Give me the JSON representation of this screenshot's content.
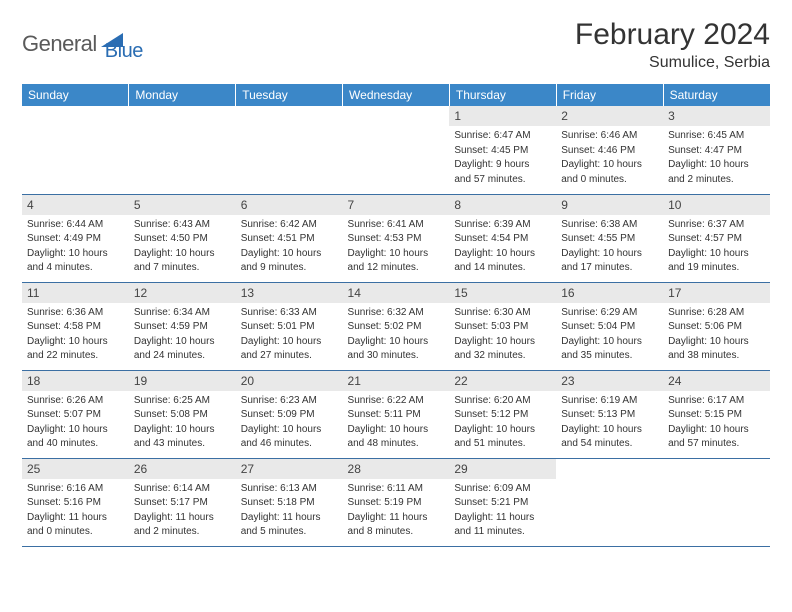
{
  "brand": {
    "part1": "General",
    "part2": "Blue"
  },
  "title": "February 2024",
  "location": "Sumulice, Serbia",
  "colors": {
    "header_bg": "#3b87c8",
    "row_border": "#3b6fa3",
    "daynum_bg": "#e9e9e9",
    "brand_blue": "#2a6db3",
    "brand_grey": "#5a5a5a"
  },
  "weekdays": [
    "Sunday",
    "Monday",
    "Tuesday",
    "Wednesday",
    "Thursday",
    "Friday",
    "Saturday"
  ],
  "weeks": [
    [
      null,
      null,
      null,
      null,
      {
        "n": "1",
        "sunrise": "Sunrise: 6:47 AM",
        "sunset": "Sunset: 4:45 PM",
        "day1": "Daylight: 9 hours",
        "day2": "and 57 minutes."
      },
      {
        "n": "2",
        "sunrise": "Sunrise: 6:46 AM",
        "sunset": "Sunset: 4:46 PM",
        "day1": "Daylight: 10 hours",
        "day2": "and 0 minutes."
      },
      {
        "n": "3",
        "sunrise": "Sunrise: 6:45 AM",
        "sunset": "Sunset: 4:47 PM",
        "day1": "Daylight: 10 hours",
        "day2": "and 2 minutes."
      }
    ],
    [
      {
        "n": "4",
        "sunrise": "Sunrise: 6:44 AM",
        "sunset": "Sunset: 4:49 PM",
        "day1": "Daylight: 10 hours",
        "day2": "and 4 minutes."
      },
      {
        "n": "5",
        "sunrise": "Sunrise: 6:43 AM",
        "sunset": "Sunset: 4:50 PM",
        "day1": "Daylight: 10 hours",
        "day2": "and 7 minutes."
      },
      {
        "n": "6",
        "sunrise": "Sunrise: 6:42 AM",
        "sunset": "Sunset: 4:51 PM",
        "day1": "Daylight: 10 hours",
        "day2": "and 9 minutes."
      },
      {
        "n": "7",
        "sunrise": "Sunrise: 6:41 AM",
        "sunset": "Sunset: 4:53 PM",
        "day1": "Daylight: 10 hours",
        "day2": "and 12 minutes."
      },
      {
        "n": "8",
        "sunrise": "Sunrise: 6:39 AM",
        "sunset": "Sunset: 4:54 PM",
        "day1": "Daylight: 10 hours",
        "day2": "and 14 minutes."
      },
      {
        "n": "9",
        "sunrise": "Sunrise: 6:38 AM",
        "sunset": "Sunset: 4:55 PM",
        "day1": "Daylight: 10 hours",
        "day2": "and 17 minutes."
      },
      {
        "n": "10",
        "sunrise": "Sunrise: 6:37 AM",
        "sunset": "Sunset: 4:57 PM",
        "day1": "Daylight: 10 hours",
        "day2": "and 19 minutes."
      }
    ],
    [
      {
        "n": "11",
        "sunrise": "Sunrise: 6:36 AM",
        "sunset": "Sunset: 4:58 PM",
        "day1": "Daylight: 10 hours",
        "day2": "and 22 minutes."
      },
      {
        "n": "12",
        "sunrise": "Sunrise: 6:34 AM",
        "sunset": "Sunset: 4:59 PM",
        "day1": "Daylight: 10 hours",
        "day2": "and 24 minutes."
      },
      {
        "n": "13",
        "sunrise": "Sunrise: 6:33 AM",
        "sunset": "Sunset: 5:01 PM",
        "day1": "Daylight: 10 hours",
        "day2": "and 27 minutes."
      },
      {
        "n": "14",
        "sunrise": "Sunrise: 6:32 AM",
        "sunset": "Sunset: 5:02 PM",
        "day1": "Daylight: 10 hours",
        "day2": "and 30 minutes."
      },
      {
        "n": "15",
        "sunrise": "Sunrise: 6:30 AM",
        "sunset": "Sunset: 5:03 PM",
        "day1": "Daylight: 10 hours",
        "day2": "and 32 minutes."
      },
      {
        "n": "16",
        "sunrise": "Sunrise: 6:29 AM",
        "sunset": "Sunset: 5:04 PM",
        "day1": "Daylight: 10 hours",
        "day2": "and 35 minutes."
      },
      {
        "n": "17",
        "sunrise": "Sunrise: 6:28 AM",
        "sunset": "Sunset: 5:06 PM",
        "day1": "Daylight: 10 hours",
        "day2": "and 38 minutes."
      }
    ],
    [
      {
        "n": "18",
        "sunrise": "Sunrise: 6:26 AM",
        "sunset": "Sunset: 5:07 PM",
        "day1": "Daylight: 10 hours",
        "day2": "and 40 minutes."
      },
      {
        "n": "19",
        "sunrise": "Sunrise: 6:25 AM",
        "sunset": "Sunset: 5:08 PM",
        "day1": "Daylight: 10 hours",
        "day2": "and 43 minutes."
      },
      {
        "n": "20",
        "sunrise": "Sunrise: 6:23 AM",
        "sunset": "Sunset: 5:09 PM",
        "day1": "Daylight: 10 hours",
        "day2": "and 46 minutes."
      },
      {
        "n": "21",
        "sunrise": "Sunrise: 6:22 AM",
        "sunset": "Sunset: 5:11 PM",
        "day1": "Daylight: 10 hours",
        "day2": "and 48 minutes."
      },
      {
        "n": "22",
        "sunrise": "Sunrise: 6:20 AM",
        "sunset": "Sunset: 5:12 PM",
        "day1": "Daylight: 10 hours",
        "day2": "and 51 minutes."
      },
      {
        "n": "23",
        "sunrise": "Sunrise: 6:19 AM",
        "sunset": "Sunset: 5:13 PM",
        "day1": "Daylight: 10 hours",
        "day2": "and 54 minutes."
      },
      {
        "n": "24",
        "sunrise": "Sunrise: 6:17 AM",
        "sunset": "Sunset: 5:15 PM",
        "day1": "Daylight: 10 hours",
        "day2": "and 57 minutes."
      }
    ],
    [
      {
        "n": "25",
        "sunrise": "Sunrise: 6:16 AM",
        "sunset": "Sunset: 5:16 PM",
        "day1": "Daylight: 11 hours",
        "day2": "and 0 minutes."
      },
      {
        "n": "26",
        "sunrise": "Sunrise: 6:14 AM",
        "sunset": "Sunset: 5:17 PM",
        "day1": "Daylight: 11 hours",
        "day2": "and 2 minutes."
      },
      {
        "n": "27",
        "sunrise": "Sunrise: 6:13 AM",
        "sunset": "Sunset: 5:18 PM",
        "day1": "Daylight: 11 hours",
        "day2": "and 5 minutes."
      },
      {
        "n": "28",
        "sunrise": "Sunrise: 6:11 AM",
        "sunset": "Sunset: 5:19 PM",
        "day1": "Daylight: 11 hours",
        "day2": "and 8 minutes."
      },
      {
        "n": "29",
        "sunrise": "Sunrise: 6:09 AM",
        "sunset": "Sunset: 5:21 PM",
        "day1": "Daylight: 11 hours",
        "day2": "and 11 minutes."
      },
      null,
      null
    ]
  ]
}
